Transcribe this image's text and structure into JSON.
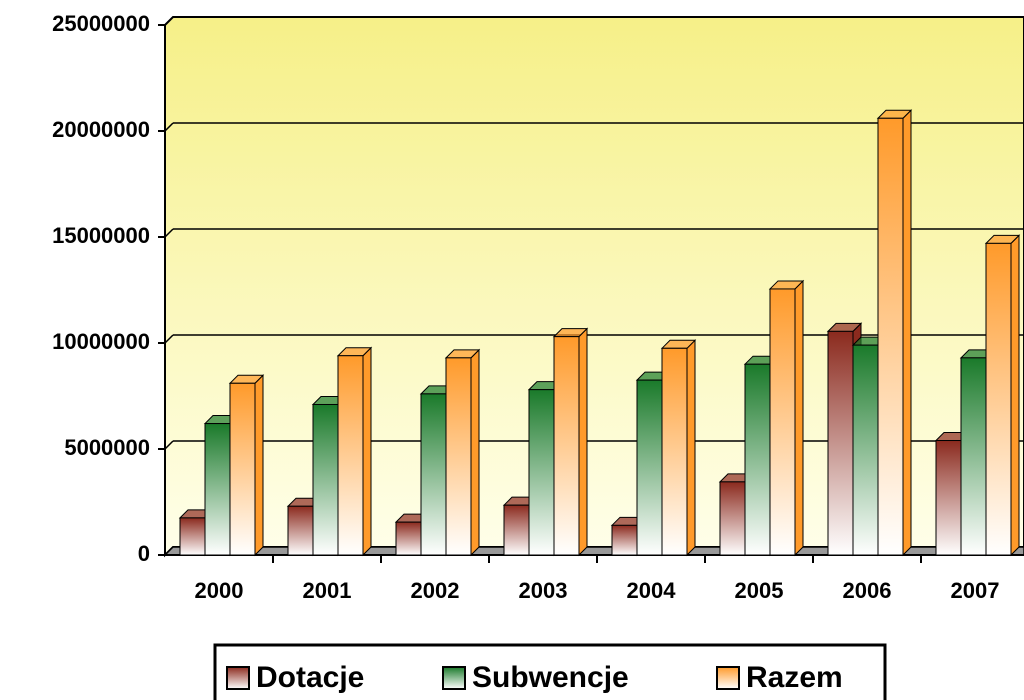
{
  "chart_data": {
    "type": "bar3d",
    "categories": [
      "2000",
      "2001",
      "2002",
      "2003",
      "2004",
      "2005",
      "2006",
      "2007"
    ],
    "series": [
      {
        "name": "Dotacje",
        "color": "#8b2a1e",
        "values": [
          1750000,
          2300000,
          1550000,
          2350000,
          1400000,
          3450000,
          10550000,
          5400000
        ]
      },
      {
        "name": "Subwencje",
        "color": "#1a7a2a",
        "values": [
          6200000,
          7100000,
          7600000,
          7800000,
          8250000,
          9000000,
          9900000,
          9300000
        ]
      },
      {
        "name": "Razem",
        "color": "#ff9a2a",
        "values": [
          8100000,
          9400000,
          9300000,
          10300000,
          9750000,
          12550000,
          20600000,
          14700000
        ]
      }
    ],
    "ylim": [
      0,
      25000000
    ],
    "yticks": [
      0,
      5000000,
      10000000,
      15000000,
      20000000,
      25000000
    ],
    "grid": true,
    "legend": "bottom"
  }
}
